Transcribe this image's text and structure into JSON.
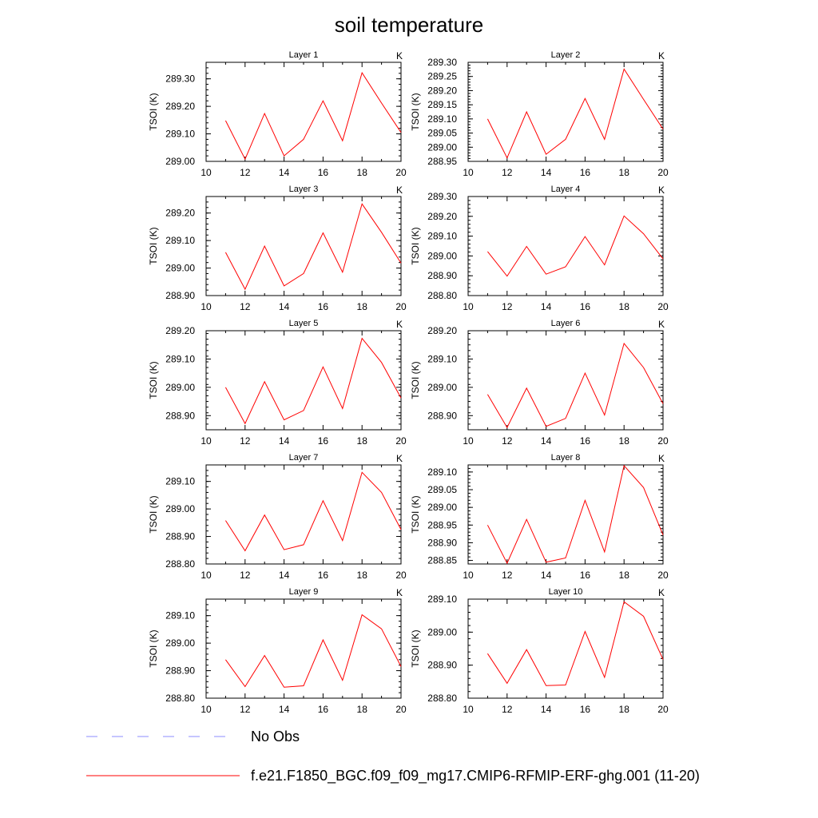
{
  "title": "soil temperature",
  "legend": [
    {
      "label": "No Obs",
      "style": "dashed",
      "color": "#8c8cff"
    },
    {
      "label": "f.e21.F1850_BGC.f09_f09_mg17.CMIP6-RFMIP-ERF-ghg.001 (11-20)",
      "style": "solid",
      "color": "#ff0000"
    }
  ],
  "chart_data": [
    {
      "type": "line",
      "title": "Layer 1",
      "units": "K",
      "ylabel": "TSOI  (K)",
      "xlim": [
        10,
        20
      ],
      "ylim": [
        289.0,
        289.36
      ],
      "xticks": [
        "10",
        "12",
        "14",
        "16",
        "18",
        "20"
      ],
      "yticks": [
        289.0,
        289.1,
        289.2,
        289.3
      ],
      "ytick_labels": [
        "289.00",
        "289.10",
        "289.20",
        "289.30"
      ],
      "series": [
        {
          "color": "#ff0000",
          "x": [
            11,
            12,
            13,
            14,
            15,
            16,
            17,
            18,
            19,
            20
          ],
          "y": [
            289.148,
            289.008,
            289.174,
            289.02,
            289.08,
            289.22,
            289.075,
            289.322,
            289.212,
            289.105
          ]
        }
      ]
    },
    {
      "type": "line",
      "title": "Layer 2",
      "units": "K",
      "ylabel": "TSOI  (K)",
      "xlim": [
        10,
        20
      ],
      "ylim": [
        288.95,
        289.3
      ],
      "xticks": [
        "10",
        "12",
        "14",
        "16",
        "18",
        "20"
      ],
      "yticks": [
        288.95,
        289.0,
        289.05,
        289.1,
        289.15,
        289.2,
        289.25,
        289.3
      ],
      "ytick_labels": [
        "288.95",
        "289.00",
        "289.05",
        "289.10",
        "289.15",
        "289.20",
        "289.25",
        "289.30"
      ],
      "series": [
        {
          "color": "#ff0000",
          "x": [
            11,
            12,
            13,
            14,
            15,
            16,
            17,
            18,
            19,
            20
          ],
          "y": [
            289.1,
            288.962,
            289.125,
            288.975,
            289.028,
            289.172,
            289.028,
            289.276,
            289.169,
            289.064
          ]
        }
      ]
    },
    {
      "type": "line",
      "title": "Layer 3",
      "units": "K",
      "ylabel": "TSOI  (K)",
      "xlim": [
        10,
        20
      ],
      "ylim": [
        288.9,
        289.26
      ],
      "xticks": [
        "10",
        "12",
        "14",
        "16",
        "18",
        "20"
      ],
      "yticks": [
        288.9,
        289.0,
        289.1,
        289.2
      ],
      "ytick_labels": [
        "288.90",
        "289.00",
        "289.10",
        "289.20"
      ],
      "series": [
        {
          "color": "#ff0000",
          "x": [
            11,
            12,
            13,
            14,
            15,
            16,
            17,
            18,
            19,
            20
          ],
          "y": [
            289.057,
            288.923,
            289.08,
            288.935,
            288.98,
            289.128,
            288.985,
            289.233,
            289.13,
            289.018
          ]
        }
      ]
    },
    {
      "type": "line",
      "title": "Layer 4",
      "units": "K",
      "ylabel": "TSOI  (K)",
      "xlim": [
        10,
        20
      ],
      "ylim": [
        288.8,
        289.3
      ],
      "xticks": [
        "10",
        "12",
        "14",
        "16",
        "18",
        "20"
      ],
      "yticks": [
        288.8,
        288.9,
        289.0,
        289.1,
        289.2,
        289.3
      ],
      "ytick_labels": [
        "288.80",
        "288.90",
        "289.00",
        "289.10",
        "289.20",
        "289.30"
      ],
      "series": [
        {
          "color": "#ff0000",
          "x": [
            11,
            12,
            13,
            14,
            15,
            16,
            17,
            18,
            19,
            20
          ],
          "y": [
            289.022,
            288.898,
            289.048,
            288.908,
            288.945,
            289.098,
            288.955,
            289.202,
            289.112,
            288.985
          ]
        }
      ]
    },
    {
      "type": "line",
      "title": "Layer 5",
      "units": "K",
      "ylabel": "TSOI  (K)",
      "xlim": [
        10,
        20
      ],
      "ylim": [
        288.85,
        289.2
      ],
      "xticks": [
        "10",
        "12",
        "14",
        "16",
        "18",
        "20"
      ],
      "yticks": [
        288.9,
        289.0,
        289.1,
        289.2
      ],
      "ytick_labels": [
        "288.90",
        "289.00",
        "289.10",
        "289.20"
      ],
      "series": [
        {
          "color": "#ff0000",
          "x": [
            11,
            12,
            13,
            14,
            15,
            16,
            17,
            18,
            19,
            20
          ],
          "y": [
            289.0,
            288.872,
            289.02,
            288.885,
            288.918,
            289.072,
            288.925,
            289.173,
            289.088,
            288.962
          ]
        }
      ]
    },
    {
      "type": "line",
      "title": "Layer 6",
      "units": "K",
      "ylabel": "TSOI  (K)",
      "xlim": [
        10,
        20
      ],
      "ylim": [
        288.85,
        289.2
      ],
      "xticks": [
        "10",
        "12",
        "14",
        "16",
        "18",
        "20"
      ],
      "yticks": [
        288.9,
        289.0,
        289.1,
        289.2
      ],
      "ytick_labels": [
        "288.90",
        "289.00",
        "289.10",
        "289.20"
      ],
      "series": [
        {
          "color": "#ff0000",
          "x": [
            11,
            12,
            13,
            14,
            15,
            16,
            17,
            18,
            19,
            20
          ],
          "y": [
            288.975,
            288.858,
            288.997,
            288.862,
            288.89,
            289.05,
            288.902,
            289.155,
            289.07,
            288.942
          ]
        }
      ]
    },
    {
      "type": "line",
      "title": "Layer 7",
      "units": "K",
      "ylabel": "TSOI  (K)",
      "xlim": [
        10,
        20
      ],
      "ylim": [
        288.8,
        289.16
      ],
      "xticks": [
        "10",
        "12",
        "14",
        "16",
        "18",
        "20"
      ],
      "yticks": [
        288.8,
        288.9,
        289.0,
        289.1
      ],
      "ytick_labels": [
        "288.80",
        "288.90",
        "289.00",
        "289.10"
      ],
      "series": [
        {
          "color": "#ff0000",
          "x": [
            11,
            12,
            13,
            14,
            15,
            16,
            17,
            18,
            19,
            20
          ],
          "y": [
            288.958,
            288.848,
            288.978,
            288.852,
            288.87,
            289.03,
            288.885,
            289.133,
            289.06,
            288.925
          ]
        }
      ]
    },
    {
      "type": "line",
      "title": "Layer 8",
      "units": "K",
      "ylabel": "TSOI  (K)",
      "xlim": [
        10,
        20
      ],
      "ylim": [
        288.84,
        289.12
      ],
      "xticks": [
        "10",
        "12",
        "14",
        "16",
        "18",
        "20"
      ],
      "yticks": [
        288.85,
        288.9,
        288.95,
        289.0,
        289.05,
        289.1
      ],
      "ytick_labels": [
        "288.85",
        "288.90",
        "288.95",
        "289.00",
        "289.05",
        "289.10"
      ],
      "series": [
        {
          "color": "#ff0000",
          "x": [
            11,
            12,
            13,
            14,
            15,
            16,
            17,
            18,
            19,
            20
          ],
          "y": [
            288.95,
            288.842,
            288.966,
            288.845,
            288.857,
            289.02,
            288.874,
            289.118,
            289.056,
            288.922
          ]
        }
      ]
    },
    {
      "type": "line",
      "title": "Layer 9",
      "units": "K",
      "ylabel": "TSOI  (K)",
      "xlim": [
        10,
        20
      ],
      "ylim": [
        288.8,
        289.16
      ],
      "xticks": [
        "10",
        "12",
        "14",
        "16",
        "18",
        "20"
      ],
      "yticks": [
        288.8,
        288.9,
        289.0,
        289.1
      ],
      "ytick_labels": [
        "288.80",
        "288.90",
        "289.00",
        "289.10"
      ],
      "series": [
        {
          "color": "#ff0000",
          "x": [
            11,
            12,
            13,
            14,
            15,
            16,
            17,
            18,
            19,
            20
          ],
          "y": [
            288.94,
            288.842,
            288.955,
            288.84,
            288.845,
            289.012,
            288.865,
            289.103,
            289.052,
            288.915
          ]
        }
      ]
    },
    {
      "type": "line",
      "title": "Layer 10",
      "units": "K",
      "ylabel": "TSOI  (K)",
      "xlim": [
        10,
        20
      ],
      "ylim": [
        288.8,
        289.1
      ],
      "xticks": [
        "10",
        "12",
        "14",
        "16",
        "18",
        "20"
      ],
      "yticks": [
        288.8,
        288.9,
        289.0,
        289.1
      ],
      "ytick_labels": [
        "288.80",
        "288.90",
        "289.00",
        "289.10"
      ],
      "series": [
        {
          "color": "#ff0000",
          "x": [
            11,
            12,
            13,
            14,
            15,
            16,
            17,
            18,
            19,
            20
          ],
          "y": [
            288.935,
            288.845,
            288.947,
            288.838,
            288.84,
            289.002,
            288.863,
            289.092,
            289.048,
            288.917
          ]
        }
      ]
    }
  ]
}
